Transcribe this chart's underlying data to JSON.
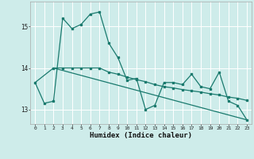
{
  "xlabel": "Humidex (Indice chaleur)",
  "bg_color": "#ceecea",
  "grid_color": "#ffffff",
  "line_color": "#1a7a6e",
  "xlim": [
    -0.5,
    23.5
  ],
  "ylim": [
    12.65,
    15.6
  ],
  "yticks": [
    13,
    14,
    15
  ],
  "xticks": [
    0,
    1,
    2,
    3,
    4,
    5,
    6,
    7,
    8,
    9,
    10,
    11,
    12,
    13,
    14,
    15,
    16,
    17,
    18,
    19,
    20,
    21,
    22,
    23
  ],
  "line1_x": [
    0,
    1,
    2,
    3,
    4,
    5,
    6,
    7,
    8,
    9,
    10,
    11,
    12,
    13,
    14,
    15,
    16,
    17,
    18,
    19,
    20,
    21,
    22,
    23
  ],
  "line1_y": [
    13.65,
    13.15,
    13.2,
    15.2,
    14.95,
    15.05,
    15.3,
    15.35,
    14.6,
    14.25,
    13.7,
    13.75,
    13.0,
    13.1,
    13.65,
    13.65,
    13.6,
    13.85,
    13.55,
    13.5,
    13.9,
    13.2,
    13.1,
    12.75
  ],
  "line2_x": [
    2,
    3,
    4,
    5,
    6,
    7,
    8,
    9,
    10,
    11,
    12,
    13,
    14,
    15,
    16,
    17,
    18,
    19,
    20,
    21,
    22,
    23
  ],
  "line2_y": [
    14.0,
    14.0,
    14.0,
    14.0,
    14.0,
    14.0,
    13.9,
    13.85,
    13.78,
    13.72,
    13.67,
    13.6,
    13.55,
    13.52,
    13.48,
    13.45,
    13.42,
    13.38,
    13.35,
    13.3,
    13.27,
    13.22
  ],
  "line3_x": [
    0,
    2,
    23
  ],
  "line3_y": [
    13.65,
    14.0,
    12.75
  ]
}
